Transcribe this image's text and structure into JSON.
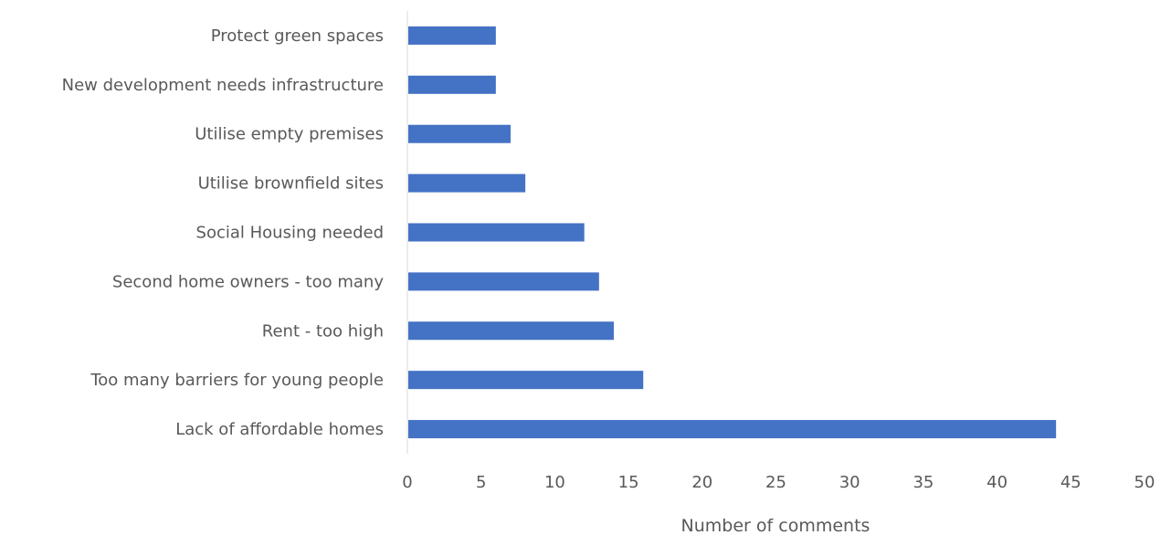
{
  "chart_data": {
    "type": "bar",
    "orientation": "horizontal",
    "categories": [
      "Lack of affordable homes",
      "Too many barriers for young people",
      "Rent - too high",
      "Second home owners - too many",
      "Social Housing needed",
      "Utilise brownfield sites",
      "Utilise empty premises",
      "New development needs infrastructure",
      "Protect green spaces"
    ],
    "values": [
      44,
      16,
      14,
      13,
      12,
      8,
      7,
      6,
      6
    ],
    "title": "",
    "xlabel": "Number of comments",
    "ylabel": "",
    "xlim": [
      0,
      50
    ],
    "xticks": [
      0,
      5,
      10,
      15,
      20,
      25,
      30,
      35,
      40,
      45,
      50
    ],
    "grid": false,
    "legend": "none",
    "bar_color": "#4472c4",
    "axis_color": "#d9d9d9",
    "text_color": "#595959"
  }
}
